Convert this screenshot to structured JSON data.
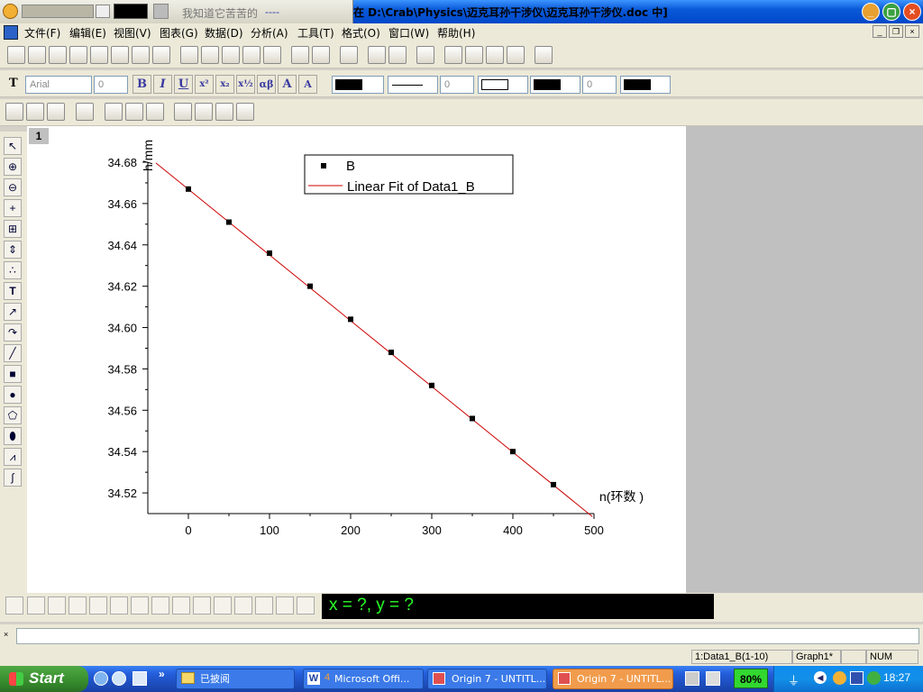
{
  "window": {
    "title": "在 D:\\Crab\\Physics\\迈克耳孙干涉仪\\迈克耳孙干涉仪.doc 中]"
  },
  "player": {
    "song": "我知道它苦苦的",
    "song_suffix": "----"
  },
  "menu": {
    "items": [
      "文件(F)",
      "编辑(E)",
      "视图(V)",
      "图表(G)",
      "数据(D)",
      "分析(A)",
      "工具(T)",
      "格式(O)",
      "窗口(W)",
      "帮助(H)"
    ]
  },
  "format_toolbar": {
    "font": "Arial",
    "font_size": "0",
    "size2": "0",
    "size3": "0"
  },
  "graph": {
    "page_number": "1",
    "coords": "x = ?, y = ?"
  },
  "chart_data": {
    "type": "scatter",
    "ylabel": "h/mm",
    "xlabel": "n(环数 )",
    "xlim": [
      -50,
      500
    ],
    "ylim": [
      34.51,
      34.68
    ],
    "x_ticks": [
      0,
      100,
      200,
      300,
      400,
      500
    ],
    "y_ticks": [
      34.52,
      34.54,
      34.56,
      34.58,
      34.6,
      34.62,
      34.64,
      34.66,
      34.68
    ],
    "legend": {
      "placement": "top-center",
      "entries": [
        "B",
        "Linear Fit of Data1_B"
      ]
    },
    "series": [
      {
        "name": "B",
        "x": [
          0,
          50,
          100,
          150,
          200,
          250,
          300,
          350,
          400,
          450
        ],
        "y": [
          34.667,
          34.651,
          34.636,
          34.62,
          34.604,
          34.588,
          34.572,
          34.556,
          34.54,
          34.524
        ],
        "color": "#000000"
      },
      {
        "name": "Linear Fit of Data1_B",
        "fit": {
          "slope": -0.000318,
          "intercept": 34.6669,
          "x_range": [
            -40,
            498
          ]
        },
        "color": "#cc0000"
      }
    ]
  },
  "status": {
    "dataset": "1:Data1_B(1-10)",
    "graph": "Graph1*",
    "num": "NUM"
  },
  "taskbar": {
    "start": "Start",
    "tasks": [
      "已披阅",
      "Microsoft Offi...",
      "Origin 7 - UNTITL...",
      "Origin 7 - UNTITL..."
    ],
    "word_count": "4",
    "battery": "80%",
    "time": "18:27"
  }
}
